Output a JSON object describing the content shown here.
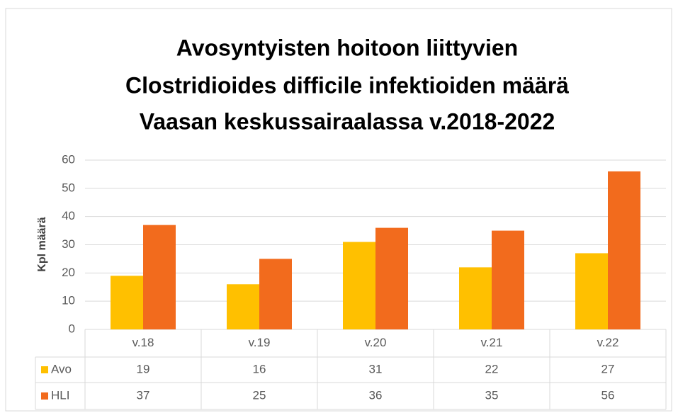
{
  "chart_data": {
    "type": "bar",
    "title": [
      "Avosyntyisten hoitoon liittyvien",
      "Clostridioides difficile infektioiden määrä",
      "Vaasan keskussairaalassa v.2018-2022"
    ],
    "y_label": "Kpl määrä",
    "categories": [
      "v.18",
      "v.19",
      "v.20",
      "v.21",
      "v.22"
    ],
    "series": [
      {
        "name": "Avo",
        "color": "#ffc000",
        "values": [
          19,
          16,
          31,
          22,
          27
        ]
      },
      {
        "name": "HLI",
        "color": "#f26b1d",
        "values": [
          37,
          25,
          36,
          35,
          56
        ]
      }
    ],
    "ylim": [
      0,
      60
    ],
    "yticks": [
      0,
      10,
      20,
      30,
      40,
      50,
      60
    ],
    "grid": true
  }
}
